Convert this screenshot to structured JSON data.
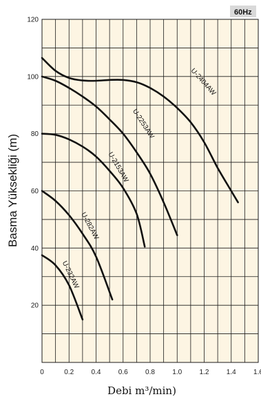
{
  "chart_data": {
    "type": "line",
    "badge": "60Hz",
    "xlabel": "Debi m³/min)",
    "ylabel": "Basma Yükseklіği (m)",
    "xlim": [
      0,
      1.6
    ],
    "ylim": [
      0,
      120
    ],
    "x_ticks": [
      "0",
      "0.2",
      "0.4",
      "0.6",
      "0.8",
      "1.0",
      "1.2",
      "1.4",
      "1.6"
    ],
    "y_ticks": [
      "20",
      "40",
      "60",
      "80",
      "100",
      "120"
    ],
    "grid": true,
    "series": [
      {
        "name": "U-2404AW",
        "x": [
          0,
          0.1,
          0.2,
          0.3,
          0.4,
          0.5,
          0.6,
          0.7,
          0.8,
          0.9,
          1.0,
          1.1,
          1.2,
          1.3,
          1.4,
          1.45
        ],
        "y": [
          106.5,
          102,
          99.5,
          98.6,
          98.5,
          98.8,
          98.8,
          98,
          96,
          93,
          89,
          84,
          77,
          68,
          60,
          56
        ]
      },
      {
        "name": "U-2253AW",
        "x": [
          0,
          0.1,
          0.2,
          0.3,
          0.4,
          0.5,
          0.6,
          0.7,
          0.8,
          0.9,
          1.0
        ],
        "y": [
          100,
          98.5,
          96,
          93,
          89.5,
          85,
          80,
          73.5,
          66,
          56,
          44.5
        ]
      },
      {
        "name": "U-2153AW",
        "x": [
          0,
          0.1,
          0.2,
          0.3,
          0.4,
          0.5,
          0.6,
          0.7,
          0.76
        ],
        "y": [
          80,
          79.6,
          78,
          75.5,
          72,
          67,
          61,
          52,
          40.5
        ]
      },
      {
        "name": "U-282AW",
        "x": [
          0,
          0.1,
          0.2,
          0.3,
          0.4,
          0.52
        ],
        "y": [
          60,
          56.5,
          51.5,
          45,
          37,
          22
        ]
      },
      {
        "name": "U-232AW",
        "x": [
          0,
          0.1,
          0.2,
          0.3
        ],
        "y": [
          37.5,
          34,
          27,
          15
        ]
      }
    ]
  }
}
